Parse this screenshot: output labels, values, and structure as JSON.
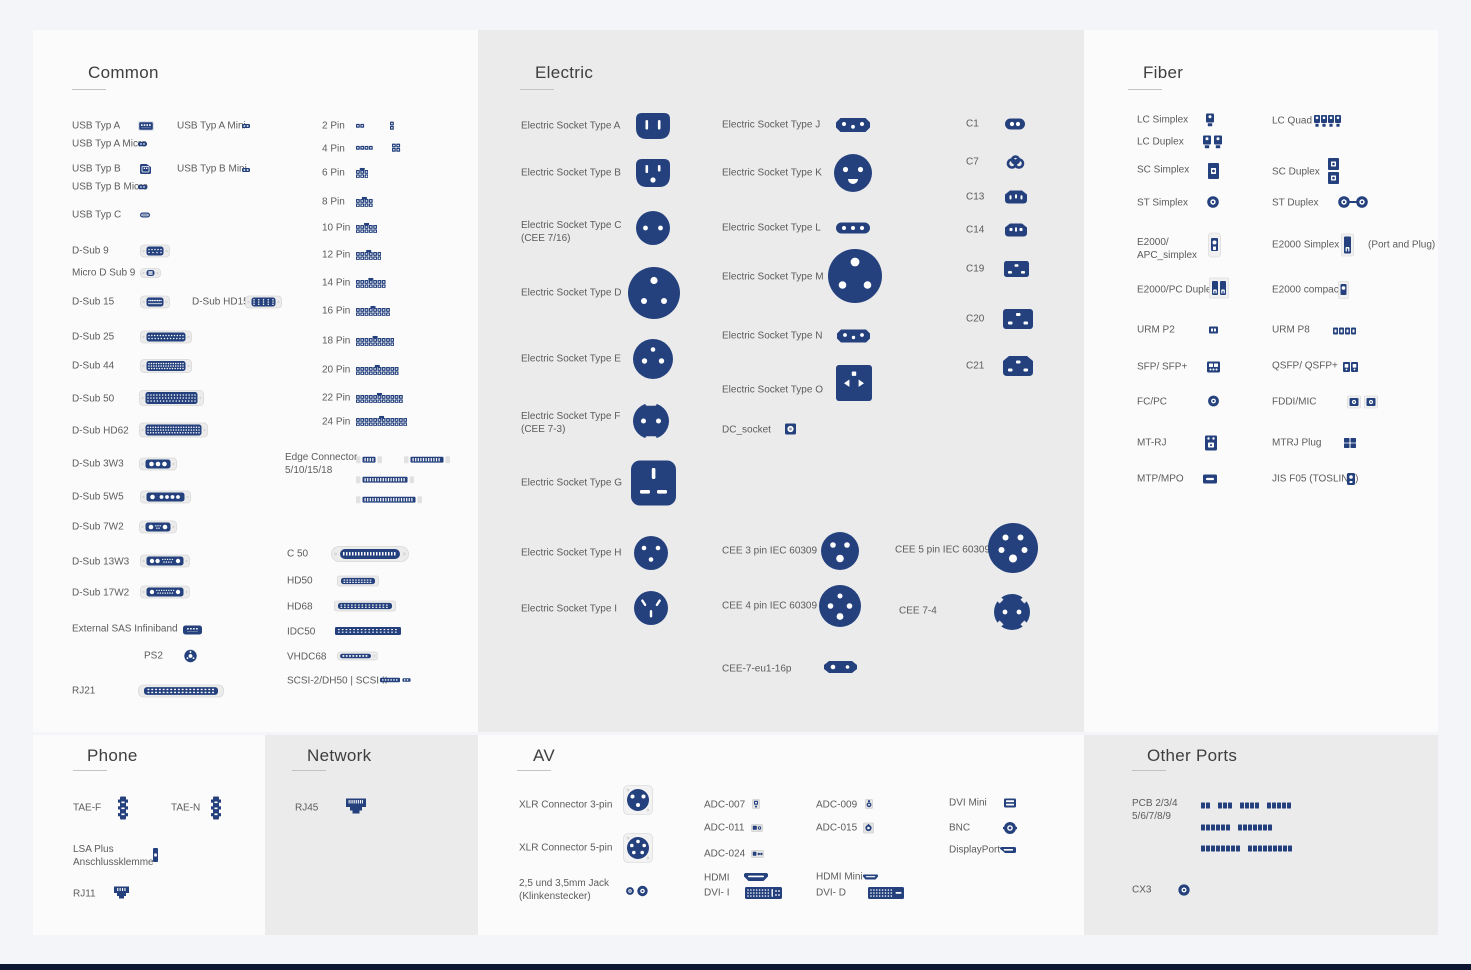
{
  "page": {
    "background": "#f3f5f9",
    "accent_navy": "#24417e",
    "panel_white": "#fbfbfb",
    "panel_gray": "#ebebeb",
    "footer_bar_color": "#0e1731"
  },
  "sections": {
    "common": {
      "title": "Common",
      "items": [
        {
          "label": "USB Typ A",
          "icon": "usb-a"
        },
        {
          "label": "USB Typ A Mini",
          "icon": "usb-a-mini"
        },
        {
          "label": "USB Typ A Micro",
          "icon": "usb-a-micro"
        },
        {
          "label": "USB Typ B",
          "icon": "usb-b"
        },
        {
          "label": "USB Typ B Mini",
          "icon": "usb-b-mini"
        },
        {
          "label": "USB Typ B Micro",
          "icon": "usb-b-micro"
        },
        {
          "label": "USB Typ C",
          "icon": "usb-c"
        },
        {
          "label": "D-Sub 9",
          "icon": "dsub-9"
        },
        {
          "label": "Micro D Sub 9",
          "icon": "micro-dsub-9"
        },
        {
          "label": "D-Sub 15",
          "icon": "dsub-15"
        },
        {
          "label": "D-Sub HD15",
          "icon": "dsub-hd15"
        },
        {
          "label": "D-Sub 25",
          "icon": "dsub-25"
        },
        {
          "label": "D-Sub 44",
          "icon": "dsub-44"
        },
        {
          "label": "D-Sub 50",
          "icon": "dsub-50"
        },
        {
          "label": "D-Sub HD62",
          "icon": "dsub-hd62"
        },
        {
          "label": "D-Sub 3W3",
          "icon": "dsub-3w3"
        },
        {
          "label": "D-Sub 5W5",
          "icon": "dsub-5w5"
        },
        {
          "label": "D-Sub 7W2",
          "icon": "dsub-7w2"
        },
        {
          "label": "D-Sub 13W3",
          "icon": "dsub-13w3"
        },
        {
          "label": "D-Sub 17W2",
          "icon": "dsub-17w2"
        },
        {
          "label": "External SAS Infiniband",
          "icon": "sas-infiniband"
        },
        {
          "label": "PS2",
          "icon": "ps2"
        },
        {
          "label": "RJ21",
          "icon": "rj21"
        },
        {
          "label": "2 Pin",
          "icon": "pin-2"
        },
        {
          "label": "4 Pin",
          "icon": "pin-4"
        },
        {
          "label": "6 Pin",
          "icon": "pin-6"
        },
        {
          "label": "8 Pin",
          "icon": "pin-8"
        },
        {
          "label": "10 Pin",
          "icon": "pin-10"
        },
        {
          "label": "12 Pin",
          "icon": "pin-12"
        },
        {
          "label": "14 Pin",
          "icon": "pin-14"
        },
        {
          "label": "16 Pin",
          "icon": "pin-16"
        },
        {
          "label": "18 Pin",
          "icon": "pin-18"
        },
        {
          "label": "20 Pin",
          "icon": "pin-20"
        },
        {
          "label": "22 Pin",
          "icon": "pin-22"
        },
        {
          "label": "24 Pin",
          "icon": "pin-24"
        },
        {
          "label": "Edge Connector\n5/10/15/18",
          "icon": "edge-connector"
        },
        {
          "label": "C 50",
          "icon": "c50"
        },
        {
          "label": "HD50",
          "icon": "hd50"
        },
        {
          "label": "HD68",
          "icon": "hd68"
        },
        {
          "label": "IDC50",
          "icon": "idc50"
        },
        {
          "label": "VHDC68",
          "icon": "vhdc68"
        },
        {
          "label": "SCSI-2/DH50 | SCSI II",
          "icon": "scsi-2"
        }
      ]
    },
    "electric": {
      "title": "Electric",
      "items": [
        {
          "label": "Electric Socket Type A",
          "icon": "socket-type-a"
        },
        {
          "label": "Electric Socket Type B",
          "icon": "socket-type-b"
        },
        {
          "label": "Electric Socket Type C\n(CEE 7/16)",
          "icon": "socket-type-c"
        },
        {
          "label": "Electric Socket Type D",
          "icon": "socket-type-d"
        },
        {
          "label": "Electric Socket Type E",
          "icon": "socket-type-e"
        },
        {
          "label": "Electric Socket Type F\n(CEE 7-3)",
          "icon": "socket-type-f"
        },
        {
          "label": "Electric Socket Type G",
          "icon": "socket-type-g"
        },
        {
          "label": "Electric Socket Type H",
          "icon": "socket-type-h"
        },
        {
          "label": "Electric Socket Type I",
          "icon": "socket-type-i"
        },
        {
          "label": "Electric Socket Type J",
          "icon": "socket-type-j"
        },
        {
          "label": "Electric Socket Type K",
          "icon": "socket-type-k"
        },
        {
          "label": "Electric Socket Type L",
          "icon": "socket-type-l"
        },
        {
          "label": "Electric Socket Type M",
          "icon": "socket-type-m"
        },
        {
          "label": "Electric Socket Type N",
          "icon": "socket-type-n"
        },
        {
          "label": "Electric Socket Type O",
          "icon": "socket-type-o"
        },
        {
          "label": "DC_socket",
          "icon": "dc-socket"
        },
        {
          "label": "CEE 3 pin IEC 60309",
          "icon": "cee-3pin"
        },
        {
          "label": "CEE 4 pin IEC 60309",
          "icon": "cee-4pin"
        },
        {
          "label": "CEE-7-eu1-16p",
          "icon": "cee-7-eu1-16p"
        },
        {
          "label": "C1",
          "icon": "iec-c1"
        },
        {
          "label": "C7",
          "icon": "iec-c7"
        },
        {
          "label": "C13",
          "icon": "iec-c13"
        },
        {
          "label": "C14",
          "icon": "iec-c14"
        },
        {
          "label": "C19",
          "icon": "iec-c19"
        },
        {
          "label": "C20",
          "icon": "iec-c20"
        },
        {
          "label": "C21",
          "icon": "iec-c21"
        },
        {
          "label": "CEE 5 pin IEC 60309",
          "icon": "cee-5pin"
        },
        {
          "label": "CEE 7-4",
          "icon": "cee-7-4"
        }
      ]
    },
    "fiber": {
      "title": "Fiber",
      "items": [
        {
          "label": "LC Simplex",
          "icon": "lc-simplex"
        },
        {
          "label": "LC Quad",
          "icon": "lc-quad"
        },
        {
          "label": "LC Duplex",
          "icon": "lc-duplex"
        },
        {
          "label": "SC Simplex",
          "icon": "sc-simplex"
        },
        {
          "label": "SC Duplex",
          "icon": "sc-duplex"
        },
        {
          "label": "ST Simplex",
          "icon": "st-simplex"
        },
        {
          "label": "ST Duplex",
          "icon": "st-duplex"
        },
        {
          "label": "E2000/\nAPC_simplex",
          "icon": "e2000-apc-simplex"
        },
        {
          "label": "E2000 Simplex",
          "icon": "e2000-simplex",
          "note": "(Port and Plug)"
        },
        {
          "label": "E2000/PC Duplex",
          "icon": "e2000-pc-duplex"
        },
        {
          "label": "E2000 compact",
          "icon": "e2000-compact"
        },
        {
          "label": "URM P2",
          "icon": "urm-p2"
        },
        {
          "label": "URM P8",
          "icon": "urm-p8"
        },
        {
          "label": "SFP/ SFP+",
          "icon": "sfp"
        },
        {
          "label": "QSFP/ QSFP+",
          "icon": "qsfp"
        },
        {
          "label": "FC/PC",
          "icon": "fc-pc"
        },
        {
          "label": "FDDI/MIC",
          "icon": "fddi-mic"
        },
        {
          "label": "MT-RJ",
          "icon": "mt-rj"
        },
        {
          "label": "MTRJ Plug",
          "icon": "mtrj-plug"
        },
        {
          "label": "MTP/MPO",
          "icon": "mtp-mpo"
        },
        {
          "label": "JIS F05 (TOSLINK)",
          "icon": "jis-f05"
        }
      ]
    },
    "phone": {
      "title": "Phone",
      "items": [
        {
          "label": "TAE-F",
          "icon": "tae-f"
        },
        {
          "label": "TAE-N",
          "icon": "tae-n"
        },
        {
          "label": "LSA Plus\nAnschlussklemme",
          "icon": "lsa-plus"
        },
        {
          "label": "RJ11",
          "icon": "rj11"
        }
      ]
    },
    "network": {
      "title": "Network",
      "items": [
        {
          "label": "RJ45",
          "icon": "rj45"
        }
      ]
    },
    "av": {
      "title": "AV",
      "items": [
        {
          "label": "XLR Connector 3-pin",
          "icon": "xlr-3pin"
        },
        {
          "label": "XLR Connector 5-pin",
          "icon": "xlr-5pin"
        },
        {
          "label": "2,5 und 3,5mm Jack\n(Klinkenstecker)",
          "icon": "audio-jack"
        },
        {
          "label": "ADC-007",
          "icon": "adc-007"
        },
        {
          "label": "ADC-011",
          "icon": "adc-011"
        },
        {
          "label": "ADC-024",
          "icon": "adc-024"
        },
        {
          "label": "HDMI",
          "icon": "hdmi"
        },
        {
          "label": "DVI- I",
          "icon": "dvi-i"
        },
        {
          "label": "ADC-009",
          "icon": "adc-009"
        },
        {
          "label": "ADC-015",
          "icon": "adc-015"
        },
        {
          "label": "HDMI Mini",
          "icon": "hdmi-mini"
        },
        {
          "label": "DVI- D",
          "icon": "dvi-d"
        },
        {
          "label": "DVI Mini",
          "icon": "dvi-mini"
        },
        {
          "label": "BNC",
          "icon": "bnc"
        },
        {
          "label": "DisplayPort",
          "icon": "displayport"
        }
      ]
    },
    "other": {
      "title": "Other Ports",
      "items": [
        {
          "label": "PCB 2/3/4\n5/6/7/8/9",
          "icon": "pcb-pins"
        },
        {
          "label": "CX3",
          "icon": "cx3"
        }
      ]
    }
  }
}
